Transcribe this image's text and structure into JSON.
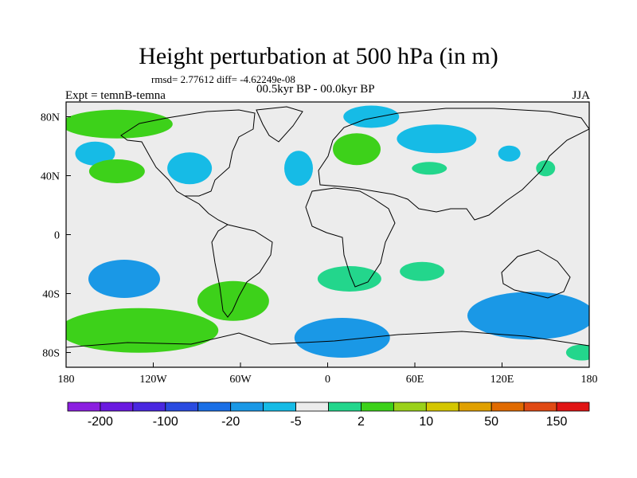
{
  "header": {
    "title": "Height perturbation at 500 hPa (in m)",
    "stats": "rmsd= 2.77612 diff= -4.62249e-08",
    "period": "00.5kyr BP - 00.0kyr BP",
    "experiment": "Expt = temnB-temna",
    "season": "JJA"
  },
  "chart_data": {
    "type": "heatmap",
    "title": "Height perturbation at 500 hPa (in m)",
    "projection": "cylindrical equidistant",
    "x_range_deg_lon": [
      -180,
      180
    ],
    "y_range_deg_lat": [
      -90,
      90
    ],
    "x_ticks": [
      {
        "value": -180,
        "label": "180"
      },
      {
        "value": -120,
        "label": "120W"
      },
      {
        "value": -60,
        "label": "60W"
      },
      {
        "value": 0,
        "label": "0"
      },
      {
        "value": 60,
        "label": "60E"
      },
      {
        "value": 120,
        "label": "120E"
      },
      {
        "value": 180,
        "label": "180"
      }
    ],
    "y_ticks": [
      {
        "value": 80,
        "label": "80N"
      },
      {
        "value": 40,
        "label": "40N"
      },
      {
        "value": 0,
        "label": "0"
      },
      {
        "value": -40,
        "label": "40S"
      },
      {
        "value": -80,
        "label": "80S"
      }
    ],
    "colorbar": {
      "colors": [
        "#8b1fe0",
        "#6a1ae0",
        "#4a28e0",
        "#2a4be0",
        "#1a6fe6",
        "#1a98e6",
        "#16bbe6",
        "#ececec",
        "#23d68c",
        "#3dd11a",
        "#9ad11a",
        "#d4c600",
        "#e0a000",
        "#e06a00",
        "#e04a14",
        "#e01414"
      ],
      "labels": [
        "-200",
        "-100",
        "-20",
        "-5",
        "2",
        "10",
        "50",
        "150"
      ],
      "label_boundaries": [
        1,
        3,
        5,
        7,
        9,
        11,
        13,
        15
      ]
    },
    "anomalies": [
      {
        "name": "north-pacific-high",
        "lon": -145,
        "lat": 75,
        "level": 10
      },
      {
        "name": "north-pacific-low",
        "lon": -160,
        "lat": 55,
        "level": -5
      },
      {
        "name": "north-pacific-midlat-high",
        "lon": -145,
        "lat": 43,
        "level": 10
      },
      {
        "name": "north-america-low",
        "lon": -95,
        "lat": 45,
        "level": -5
      },
      {
        "name": "north-atlantic-low",
        "lon": -20,
        "lat": 45,
        "level": -5
      },
      {
        "name": "europe-high",
        "lon": 20,
        "lat": 58,
        "level": 10
      },
      {
        "name": "arctic-low",
        "lon": 30,
        "lat": 80,
        "level": -5
      },
      {
        "name": "siberia-low",
        "lon": 75,
        "lat": 65,
        "level": -5
      },
      {
        "name": "central-asia-high",
        "lon": 70,
        "lat": 45,
        "level": 2
      },
      {
        "name": "east-asia-low",
        "lon": 125,
        "lat": 55,
        "level": -5
      },
      {
        "name": "kamchatka-high",
        "lon": 150,
        "lat": 45,
        "level": 2
      },
      {
        "name": "south-pacific-low",
        "lon": -140,
        "lat": -30,
        "level": -20
      },
      {
        "name": "south-pacific-high",
        "lon": -130,
        "lat": -65,
        "level": 10
      },
      {
        "name": "south-america-high",
        "lon": -65,
        "lat": -45,
        "level": 10
      },
      {
        "name": "south-atlantic-high",
        "lon": 15,
        "lat": -30,
        "level": 2
      },
      {
        "name": "southern-ocean-atlantic-low",
        "lon": 10,
        "lat": -70,
        "level": -20
      },
      {
        "name": "indian-ocean-high",
        "lon": 65,
        "lat": -25,
        "level": 2
      },
      {
        "name": "australia-southern-ocean-low",
        "lon": 140,
        "lat": -55,
        "level": -20
      },
      {
        "name": "antarctic-high",
        "lon": 175,
        "lat": -80,
        "level": 2
      }
    ]
  }
}
